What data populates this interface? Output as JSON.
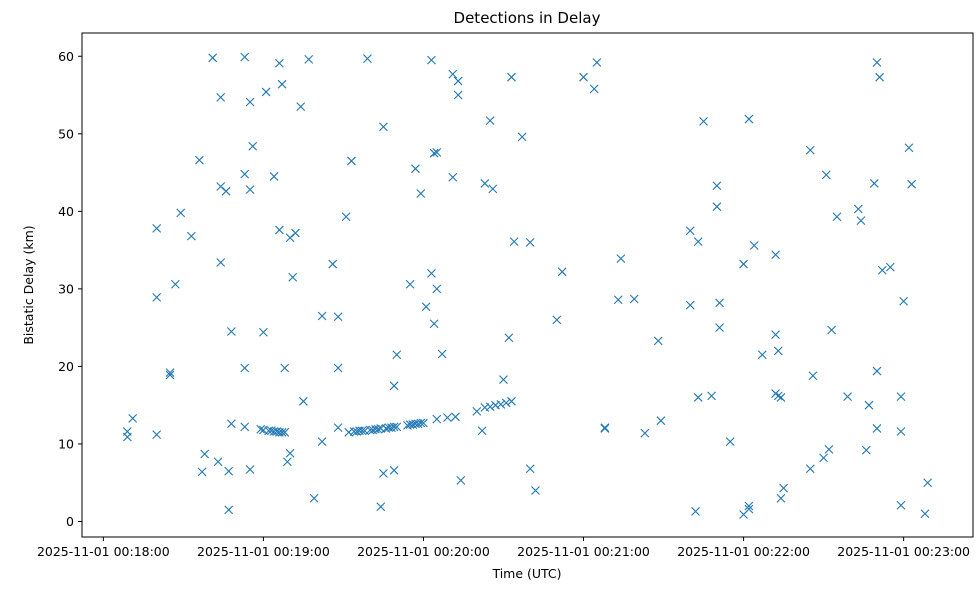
{
  "chart_data": {
    "type": "scatter",
    "title": "Detections in Delay",
    "xlabel": "Time (UTC)",
    "ylabel": "Bistatic Delay (km)",
    "x_tick_labels": [
      "2025-11-01 00:18:00",
      "2025-11-01 00:19:00",
      "2025-11-01 00:20:00",
      "2025-11-01 00:21:00",
      "2025-11-01 00:22:00",
      "2025-11-01 00:23:00"
    ],
    "xlim": [
      "2025-11-01 00:17:52",
      "2025-11-01 00:23:26"
    ],
    "y_ticks": [
      0,
      10,
      20,
      30,
      40,
      50,
      60
    ],
    "ylim": [
      -2,
      63
    ],
    "marker": "x",
    "color": "#1f77b4",
    "grid": false,
    "legend": false,
    "points": [
      {
        "t": "00:18:09",
        "y": 11.6
      },
      {
        "t": "00:18:09",
        "y": 10.9
      },
      {
        "t": "00:18:11",
        "y": 13.3
      },
      {
        "t": "00:18:20",
        "y": 37.8
      },
      {
        "t": "00:18:20",
        "y": 28.9
      },
      {
        "t": "00:18:20",
        "y": 11.2
      },
      {
        "t": "00:18:25",
        "y": 19.2
      },
      {
        "t": "00:18:25",
        "y": 18.9
      },
      {
        "t": "00:18:27",
        "y": 30.6
      },
      {
        "t": "00:18:29",
        "y": 39.8
      },
      {
        "t": "00:18:33",
        "y": 36.8
      },
      {
        "t": "00:18:36",
        "y": 46.6
      },
      {
        "t": "00:18:37",
        "y": 6.4
      },
      {
        "t": "00:18:38",
        "y": 8.7
      },
      {
        "t": "00:18:41",
        "y": 59.8
      },
      {
        "t": "00:18:43",
        "y": 7.7
      },
      {
        "t": "00:18:44",
        "y": 54.7
      },
      {
        "t": "00:18:44",
        "y": 43.2
      },
      {
        "t": "00:18:44",
        "y": 33.4
      },
      {
        "t": "00:18:46",
        "y": 42.6
      },
      {
        "t": "00:18:47",
        "y": 6.5
      },
      {
        "t": "00:18:47",
        "y": 1.5
      },
      {
        "t": "00:18:48",
        "y": 24.5
      },
      {
        "t": "00:18:48",
        "y": 12.6
      },
      {
        "t": "00:18:53",
        "y": 59.9
      },
      {
        "t": "00:18:53",
        "y": 44.8
      },
      {
        "t": "00:18:53",
        "y": 19.8
      },
      {
        "t": "00:18:53",
        "y": 12.2
      },
      {
        "t": "00:18:55",
        "y": 54.1
      },
      {
        "t": "00:18:55",
        "y": 42.8
      },
      {
        "t": "00:18:55",
        "y": 6.7
      },
      {
        "t": "00:18:56",
        "y": 48.4
      },
      {
        "t": "00:18:59",
        "y": 11.9
      },
      {
        "t": "00:19:00",
        "y": 11.8
      },
      {
        "t": "00:19:00",
        "y": 24.4
      },
      {
        "t": "00:19:01",
        "y": 55.4
      },
      {
        "t": "00:19:02",
        "y": 11.7
      },
      {
        "t": "00:19:03",
        "y": 11.7
      },
      {
        "t": "00:19:04",
        "y": 11.6
      },
      {
        "t": "00:19:04",
        "y": 44.5
      },
      {
        "t": "00:19:05",
        "y": 11.6
      },
      {
        "t": "00:19:06",
        "y": 59.1
      },
      {
        "t": "00:19:06",
        "y": 37.6
      },
      {
        "t": "00:19:06",
        "y": 11.5
      },
      {
        "t": "00:19:07",
        "y": 11.5
      },
      {
        "t": "00:19:07",
        "y": 56.4
      },
      {
        "t": "00:19:08",
        "y": 11.5
      },
      {
        "t": "00:19:08",
        "y": 19.8
      },
      {
        "t": "00:19:09",
        "y": 7.7
      },
      {
        "t": "00:19:10",
        "y": 36.6
      },
      {
        "t": "00:19:10",
        "y": 8.8
      },
      {
        "t": "00:19:11",
        "y": 31.5
      },
      {
        "t": "00:19:12",
        "y": 37.2
      },
      {
        "t": "00:19:14",
        "y": 53.5
      },
      {
        "t": "00:19:15",
        "y": 15.5
      },
      {
        "t": "00:19:17",
        "y": 59.6
      },
      {
        "t": "00:19:19",
        "y": 3.0
      },
      {
        "t": "00:19:22",
        "y": 26.5
      },
      {
        "t": "00:19:22",
        "y": 10.3
      },
      {
        "t": "00:19:26",
        "y": 33.2
      },
      {
        "t": "00:19:28",
        "y": 26.4
      },
      {
        "t": "00:19:28",
        "y": 19.8
      },
      {
        "t": "00:19:28",
        "y": 12.1
      },
      {
        "t": "00:19:31",
        "y": 39.3
      },
      {
        "t": "00:19:32",
        "y": 11.5
      },
      {
        "t": "00:19:33",
        "y": 46.5
      },
      {
        "t": "00:19:34",
        "y": 11.6
      },
      {
        "t": "00:19:35",
        "y": 11.6
      },
      {
        "t": "00:19:36",
        "y": 11.7
      },
      {
        "t": "00:19:37",
        "y": 11.7
      },
      {
        "t": "00:19:38",
        "y": 11.7
      },
      {
        "t": "00:19:39",
        "y": 59.7
      },
      {
        "t": "00:19:40",
        "y": 11.8
      },
      {
        "t": "00:19:41",
        "y": 11.8
      },
      {
        "t": "00:19:42",
        "y": 11.9
      },
      {
        "t": "00:19:43",
        "y": 11.9
      },
      {
        "t": "00:19:44",
        "y": 1.9
      },
      {
        "t": "00:19:44",
        "y": 12.0
      },
      {
        "t": "00:19:45",
        "y": 50.9
      },
      {
        "t": "00:19:45",
        "y": 6.2
      },
      {
        "t": "00:19:46",
        "y": 12.0
      },
      {
        "t": "00:19:47",
        "y": 12.1
      },
      {
        "t": "00:19:48",
        "y": 12.1
      },
      {
        "t": "00:19:49",
        "y": 17.5
      },
      {
        "t": "00:19:49",
        "y": 6.6
      },
      {
        "t": "00:19:49",
        "y": 12.2
      },
      {
        "t": "00:19:50",
        "y": 12.2
      },
      {
        "t": "00:19:50",
        "y": 21.5
      },
      {
        "t": "00:19:54",
        "y": 12.4
      },
      {
        "t": "00:19:55",
        "y": 30.6
      },
      {
        "t": "00:19:55",
        "y": 12.5
      },
      {
        "t": "00:19:56",
        "y": 12.5
      },
      {
        "t": "00:19:57",
        "y": 45.5
      },
      {
        "t": "00:19:57",
        "y": 12.6
      },
      {
        "t": "00:19:58",
        "y": 12.6
      },
      {
        "t": "00:19:59",
        "y": 42.3
      },
      {
        "t": "00:19:59",
        "y": 12.7
      },
      {
        "t": "00:20:00",
        "y": 12.7
      },
      {
        "t": "00:20:01",
        "y": 27.7
      },
      {
        "t": "00:20:03",
        "y": 59.5
      },
      {
        "t": "00:20:03",
        "y": 32.0
      },
      {
        "t": "00:20:04",
        "y": 25.5
      },
      {
        "t": "00:20:04",
        "y": 47.5
      },
      {
        "t": "00:20:05",
        "y": 47.6
      },
      {
        "t": "00:20:05",
        "y": 30.0
      },
      {
        "t": "00:20:05",
        "y": 13.2
      },
      {
        "t": "00:20:07",
        "y": 21.6
      },
      {
        "t": "00:20:09",
        "y": 13.4
      },
      {
        "t": "00:20:11",
        "y": 57.7
      },
      {
        "t": "00:20:11",
        "y": 44.4
      },
      {
        "t": "00:20:12",
        "y": 13.5
      },
      {
        "t": "00:20:13",
        "y": 56.8
      },
      {
        "t": "00:20:13",
        "y": 55.0
      },
      {
        "t": "00:20:14",
        "y": 5.3
      },
      {
        "t": "00:20:20",
        "y": 14.2
      },
      {
        "t": "00:20:22",
        "y": 11.7
      },
      {
        "t": "00:20:23",
        "y": 43.6
      },
      {
        "t": "00:20:23",
        "y": 14.7
      },
      {
        "t": "00:20:25",
        "y": 14.8
      },
      {
        "t": "00:20:25",
        "y": 51.7
      },
      {
        "t": "00:20:26",
        "y": 42.9
      },
      {
        "t": "00:20:27",
        "y": 15.0
      },
      {
        "t": "00:20:29",
        "y": 15.1
      },
      {
        "t": "00:20:30",
        "y": 18.3
      },
      {
        "t": "00:20:31",
        "y": 15.3
      },
      {
        "t": "00:20:32",
        "y": 23.7
      },
      {
        "t": "00:20:33",
        "y": 57.3
      },
      {
        "t": "00:20:33",
        "y": 15.5
      },
      {
        "t": "00:20:34",
        "y": 36.1
      },
      {
        "t": "00:20:37",
        "y": 49.6
      },
      {
        "t": "00:20:40",
        "y": 36.0
      },
      {
        "t": "00:20:40",
        "y": 6.8
      },
      {
        "t": "00:20:42",
        "y": 4.0
      },
      {
        "t": "00:20:50",
        "y": 26.0
      },
      {
        "t": "00:20:52",
        "y": 32.2
      },
      {
        "t": "00:21:00",
        "y": 57.3
      },
      {
        "t": "00:21:04",
        "y": 55.8
      },
      {
        "t": "00:21:05",
        "y": 59.2
      },
      {
        "t": "00:21:08",
        "y": 12.1
      },
      {
        "t": "00:21:08",
        "y": 12.0
      },
      {
        "t": "00:21:13",
        "y": 28.6
      },
      {
        "t": "00:21:14",
        "y": 33.9
      },
      {
        "t": "00:21:19",
        "y": 28.7
      },
      {
        "t": "00:21:23",
        "y": 11.4
      },
      {
        "t": "00:21:28",
        "y": 23.3
      },
      {
        "t": "00:21:29",
        "y": 13.0
      },
      {
        "t": "00:21:40",
        "y": 37.5
      },
      {
        "t": "00:21:40",
        "y": 27.9
      },
      {
        "t": "00:21:42",
        "y": 1.3
      },
      {
        "t": "00:21:43",
        "y": 16.0
      },
      {
        "t": "00:21:43",
        "y": 36.1
      },
      {
        "t": "00:21:45",
        "y": 51.6
      },
      {
        "t": "00:21:48",
        "y": 16.2
      },
      {
        "t": "00:21:50",
        "y": 43.3
      },
      {
        "t": "00:21:50",
        "y": 40.6
      },
      {
        "t": "00:21:51",
        "y": 28.2
      },
      {
        "t": "00:21:51",
        "y": 25.0
      },
      {
        "t": "00:21:55",
        "y": 10.3
      },
      {
        "t": "00:22:00",
        "y": 33.2
      },
      {
        "t": "00:22:00",
        "y": 0.9
      },
      {
        "t": "00:22:02",
        "y": 2.0
      },
      {
        "t": "00:22:02",
        "y": 1.6
      },
      {
        "t": "00:22:02",
        "y": 51.9
      },
      {
        "t": "00:22:04",
        "y": 35.6
      },
      {
        "t": "00:22:07",
        "y": 21.5
      },
      {
        "t": "00:22:12",
        "y": 24.1
      },
      {
        "t": "00:22:12",
        "y": 34.4
      },
      {
        "t": "00:22:12",
        "y": 16.5
      },
      {
        "t": "00:22:13",
        "y": 22.0
      },
      {
        "t": "00:22:13",
        "y": 16.2
      },
      {
        "t": "00:22:14",
        "y": 16.0
      },
      {
        "t": "00:22:14",
        "y": 3.0
      },
      {
        "t": "00:22:15",
        "y": 4.3
      },
      {
        "t": "00:22:25",
        "y": 47.9
      },
      {
        "t": "00:22:26",
        "y": 18.8
      },
      {
        "t": "00:22:25",
        "y": 6.8
      },
      {
        "t": "00:22:30",
        "y": 8.2
      },
      {
        "t": "00:22:31",
        "y": 44.7
      },
      {
        "t": "00:22:32",
        "y": 9.3
      },
      {
        "t": "00:22:33",
        "y": 24.7
      },
      {
        "t": "00:22:35",
        "y": 39.3
      },
      {
        "t": "00:22:39",
        "y": 16.1
      },
      {
        "t": "00:22:43",
        "y": 40.3
      },
      {
        "t": "00:22:44",
        "y": 38.8
      },
      {
        "t": "00:22:46",
        "y": 9.2
      },
      {
        "t": "00:22:47",
        "y": 15.0
      },
      {
        "t": "00:22:49",
        "y": 43.6
      },
      {
        "t": "00:22:50",
        "y": 59.2
      },
      {
        "t": "00:22:50",
        "y": 19.4
      },
      {
        "t": "00:22:50",
        "y": 12.0
      },
      {
        "t": "00:22:51",
        "y": 57.3
      },
      {
        "t": "00:22:52",
        "y": 32.4
      },
      {
        "t": "00:22:55",
        "y": 32.8
      },
      {
        "t": "00:22:59",
        "y": 16.1
      },
      {
        "t": "00:22:59",
        "y": 11.6
      },
      {
        "t": "00:22:59",
        "y": 2.1
      },
      {
        "t": "00:23:00",
        "y": 28.4
      },
      {
        "t": "00:23:02",
        "y": 48.2
      },
      {
        "t": "00:23:03",
        "y": 43.5
      },
      {
        "t": "00:23:08",
        "y": 1.0
      },
      {
        "t": "00:23:09",
        "y": 5.0
      }
    ]
  }
}
